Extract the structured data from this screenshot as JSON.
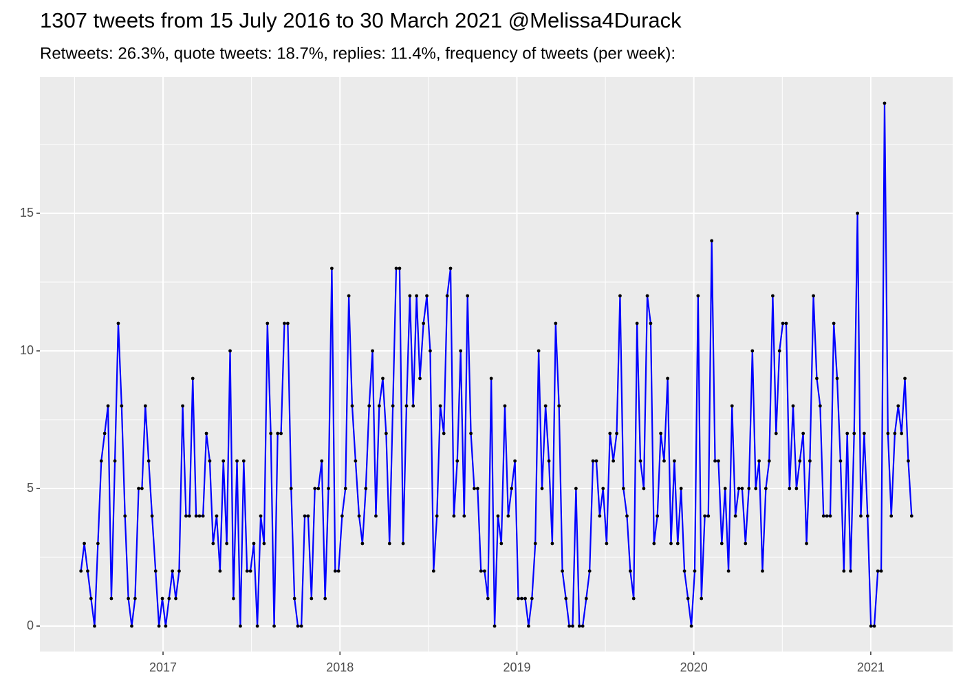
{
  "chart_data": {
    "type": "line",
    "title": "1307 tweets from 15 July 2016 to 30 March 2021 @Melissa4Durack",
    "subtitle": "Retweets: 26.3%, quote tweets: 18.7%, replies: 11.4%, frequency of tweets (per week):",
    "x": [
      2016.536,
      2016.555,
      2016.574,
      2016.593,
      2016.613,
      2016.632,
      2016.651,
      2016.67,
      2016.689,
      2016.708,
      2016.728,
      2016.747,
      2016.766,
      2016.785,
      2016.804,
      2016.823,
      2016.842,
      2016.862,
      2016.881,
      2016.9,
      2016.919,
      2016.938,
      2016.958,
      2016.977,
      2016.996,
      2017.015,
      2017.034,
      2017.053,
      2017.072,
      2017.091,
      2017.111,
      2017.13,
      2017.149,
      2017.168,
      2017.187,
      2017.206,
      2017.226,
      2017.245,
      2017.264,
      2017.283,
      2017.303,
      2017.322,
      2017.341,
      2017.36,
      2017.379,
      2017.398,
      2017.418,
      2017.437,
      2017.456,
      2017.475,
      2017.494,
      2017.513,
      2017.533,
      2017.552,
      2017.571,
      2017.59,
      2017.609,
      2017.628,
      2017.648,
      2017.667,
      2017.686,
      2017.705,
      2017.724,
      2017.743,
      2017.762,
      2017.782,
      2017.801,
      2017.82,
      2017.839,
      2017.858,
      2017.878,
      2017.897,
      2017.916,
      2017.935,
      2017.954,
      2017.973,
      2017.992,
      2018.012,
      2018.031,
      2018.05,
      2018.069,
      2018.088,
      2018.108,
      2018.127,
      2018.146,
      2018.165,
      2018.184,
      2018.203,
      2018.222,
      2018.242,
      2018.261,
      2018.28,
      2018.299,
      2018.318,
      2018.337,
      2018.357,
      2018.376,
      2018.395,
      2018.414,
      2018.433,
      2018.452,
      2018.472,
      2018.491,
      2018.51,
      2018.529,
      2018.548,
      2018.567,
      2018.587,
      2018.606,
      2018.625,
      2018.644,
      2018.663,
      2018.682,
      2018.702,
      2018.721,
      2018.74,
      2018.759,
      2018.778,
      2018.797,
      2018.817,
      2018.836,
      2018.855,
      2018.874,
      2018.893,
      2018.912,
      2018.932,
      2018.951,
      2018.97,
      2018.989,
      2019.008,
      2019.027,
      2019.047,
      2019.066,
      2019.085,
      2019.104,
      2019.123,
      2019.142,
      2019.162,
      2019.181,
      2019.2,
      2019.219,
      2019.238,
      2019.257,
      2019.277,
      2019.296,
      2019.315,
      2019.334,
      2019.353,
      2019.372,
      2019.392,
      2019.411,
      2019.43,
      2019.449,
      2019.468,
      2019.487,
      2019.507,
      2019.526,
      2019.545,
      2019.564,
      2019.583,
      2019.602,
      2019.622,
      2019.641,
      2019.66,
      2019.679,
      2019.698,
      2019.717,
      2019.737,
      2019.756,
      2019.775,
      2019.794,
      2019.813,
      2019.832,
      2019.852,
      2019.871,
      2019.89,
      2019.909,
      2019.928,
      2019.947,
      2019.967,
      2019.986,
      2020.005,
      2020.024,
      2020.043,
      2020.062,
      2020.082,
      2020.101,
      2020.12,
      2020.139,
      2020.158,
      2020.177,
      2020.196,
      2020.216,
      2020.235,
      2020.254,
      2020.273,
      2020.292,
      2020.311,
      2020.331,
      2020.35,
      2020.369,
      2020.388,
      2020.407,
      2020.426,
      2020.446,
      2020.465,
      2020.484,
      2020.503,
      2020.522,
      2020.541,
      2020.561,
      2020.58,
      2020.599,
      2020.618,
      2020.637,
      2020.656,
      2020.676,
      2020.695,
      2020.714,
      2020.733,
      2020.752,
      2020.771,
      2020.791,
      2020.81,
      2020.829,
      2020.848,
      2020.867,
      2020.886,
      2020.906,
      2020.925,
      2020.944,
      2020.963,
      2020.982,
      2021.001,
      2021.02,
      2021.04,
      2021.059,
      2021.078,
      2021.097,
      2021.116,
      2021.136,
      2021.155,
      2021.174,
      2021.193,
      2021.212,
      2021.231
    ],
    "series": [
      {
        "color": "#0000ff",
        "values": [
          2,
          3,
          2,
          1,
          0,
          3,
          6,
          7,
          8,
          1,
          6,
          11,
          8,
          4,
          1,
          0,
          1,
          5,
          5,
          8,
          6,
          4,
          2,
          0,
          1,
          0,
          1,
          2,
          1,
          2,
          8,
          4,
          4,
          9,
          4,
          4,
          4,
          7,
          6,
          3,
          4,
          2,
          6,
          3,
          10,
          1,
          6,
          0,
          6,
          2,
          2,
          3,
          0,
          4,
          3,
          11,
          7,
          0,
          7,
          7,
          11,
          11,
          5,
          1,
          0,
          0,
          4,
          4,
          1,
          5,
          5,
          6,
          1,
          5,
          13,
          2,
          2,
          4,
          5,
          12,
          8,
          6,
          4,
          3,
          5,
          8,
          10,
          4,
          8,
          9,
          7,
          3,
          8,
          13,
          13,
          3,
          8,
          12,
          8,
          12,
          9,
          11,
          12,
          10,
          2,
          4,
          8,
          7,
          12,
          13,
          4,
          6,
          10,
          4,
          12,
          7,
          5,
          5,
          2,
          2,
          1,
          9,
          0,
          4,
          3,
          8,
          4,
          5,
          6,
          1,
          1,
          1,
          0,
          1,
          3,
          10,
          5,
          8,
          6,
          3,
          11,
          8,
          2,
          1,
          0,
          0,
          5,
          0,
          0,
          1,
          2,
          6,
          6,
          4,
          5,
          3,
          7,
          6,
          7,
          12,
          5,
          4,
          2,
          1,
          11,
          6,
          5,
          12,
          11,
          3,
          4,
          7,
          6,
          9,
          3,
          6,
          3,
          5,
          2,
          1,
          0,
          2,
          12,
          1,
          4,
          4,
          14,
          6,
          6,
          3,
          5,
          2,
          8,
          4,
          5,
          5,
          3,
          5,
          10,
          5,
          6,
          2,
          5,
          6,
          12,
          7,
          10,
          11,
          11,
          5,
          8,
          5,
          6,
          7,
          3,
          6,
          12,
          9,
          8,
          4,
          4,
          4,
          11,
          9,
          6,
          2,
          7,
          2,
          7,
          15,
          4,
          7,
          4,
          0,
          0,
          2,
          2,
          19,
          7,
          4,
          7,
          8,
          7,
          9,
          6,
          4
        ]
      }
    ],
    "point_color": "#000000",
    "xlim": [
      2016.304,
      2021.463
    ],
    "xticks": [
      2017,
      2018,
      2019,
      2020,
      2021
    ],
    "ylim": [
      -0.925,
      19.95
    ],
    "yticks": [
      0,
      5,
      10,
      15
    ],
    "grid": true
  }
}
